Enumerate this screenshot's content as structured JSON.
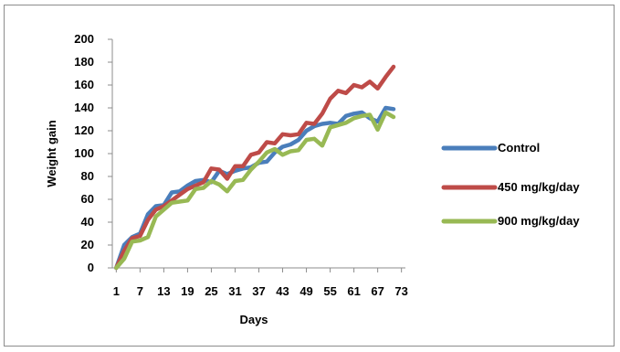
{
  "chart_data": {
    "type": "line",
    "title": "",
    "xlabel": "Days",
    "ylabel": "Weight gain",
    "ylim": [
      0,
      200
    ],
    "yticks": [
      0,
      20,
      40,
      60,
      80,
      100,
      120,
      140,
      160,
      180,
      200
    ],
    "xticks": [
      1,
      7,
      13,
      19,
      25,
      31,
      37,
      43,
      49,
      55,
      61,
      67,
      73
    ],
    "grid": false,
    "legend_position": "right",
    "x": [
      1,
      3,
      5,
      7,
      9,
      11,
      13,
      15,
      17,
      19,
      21,
      23,
      25,
      27,
      29,
      31,
      33,
      35,
      37,
      39,
      41,
      43,
      45,
      47,
      49,
      51,
      53,
      55,
      57,
      59,
      61,
      63,
      65,
      67,
      69,
      71
    ],
    "series": [
      {
        "name": "Control",
        "color": "#4a7ebb",
        "values": [
          0,
          20,
          27,
          30,
          47,
          54,
          55,
          66,
          67,
          72,
          76,
          77,
          75,
          85,
          82,
          85,
          87,
          88,
          92,
          93,
          101,
          106,
          108,
          112,
          120,
          124,
          126,
          127,
          126,
          133,
          135,
          136,
          131,
          128,
          140,
          139
        ]
      },
      {
        "name": "450 mg/kg/day",
        "color": "#be4b48",
        "values": [
          0,
          15,
          26,
          28,
          42,
          51,
          54,
          59,
          64,
          69,
          72,
          75,
          87,
          86,
          78,
          89,
          89,
          99,
          101,
          110,
          109,
          117,
          116,
          117,
          127,
          126,
          135,
          148,
          155,
          153,
          160,
          158,
          163,
          157,
          167,
          176
        ]
      },
      {
        "name": "900 mg/kg/day",
        "color": "#98b954",
        "values": [
          0,
          8,
          23,
          24,
          27,
          45,
          51,
          57,
          58,
          59,
          69,
          70,
          76,
          73,
          67,
          76,
          77,
          86,
          93,
          101,
          104,
          99,
          102,
          103,
          112,
          113,
          107,
          123,
          125,
          127,
          131,
          133,
          134,
          121,
          136,
          132
        ]
      }
    ]
  }
}
